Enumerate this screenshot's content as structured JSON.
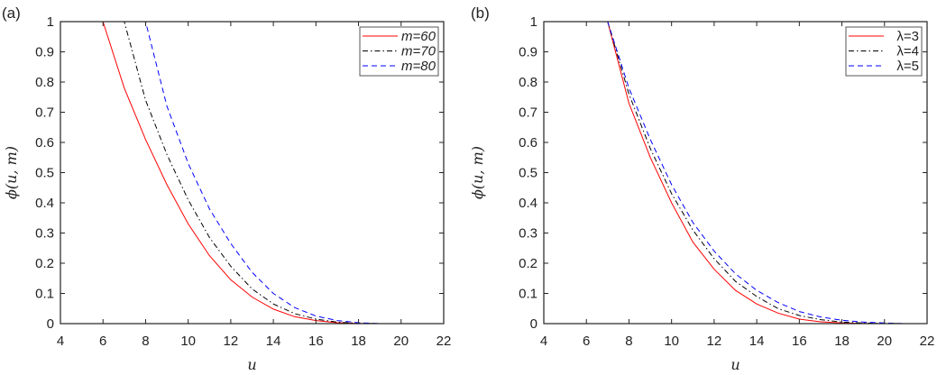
{
  "chart_data": [
    {
      "type": "line",
      "panel_label": "(a)",
      "xlabel": "u",
      "ylabel": "ϕ(u, m)",
      "xlim": [
        4,
        22
      ],
      "ylim": [
        0,
        1
      ],
      "xticks": [
        4,
        6,
        8,
        10,
        12,
        14,
        16,
        18,
        20,
        22
      ],
      "yticks": [
        0,
        0.1,
        0.2,
        0.3,
        0.4,
        0.5,
        0.6,
        0.7,
        0.8,
        0.9,
        1
      ],
      "grid": false,
      "legend": "top-right",
      "x": [
        4,
        5,
        6,
        7,
        8,
        9,
        10,
        11,
        12,
        13,
        14,
        15,
        16,
        17,
        18,
        19,
        20,
        21
      ],
      "series": [
        {
          "name": "m=60",
          "color": "#ff0000",
          "style": "solid",
          "values": [
            1,
            1,
            1,
            0.78,
            0.61,
            0.46,
            0.33,
            0.225,
            0.145,
            0.088,
            0.048,
            0.023,
            0.01,
            0.003,
            0.001,
            0,
            0,
            0
          ]
        },
        {
          "name": "m=70",
          "color": "#000000",
          "style": "dashdot",
          "values": [
            1,
            1,
            1,
            1,
            0.74,
            0.56,
            0.41,
            0.285,
            0.19,
            0.115,
            0.065,
            0.033,
            0.015,
            0.005,
            0.001,
            0,
            0,
            0
          ]
        },
        {
          "name": "m=80",
          "color": "#0000ff",
          "style": "dashed",
          "values": [
            1,
            1,
            1,
            1,
            1,
            0.72,
            0.53,
            0.38,
            0.265,
            0.17,
            0.1,
            0.053,
            0.025,
            0.01,
            0.003,
            0,
            0,
            0
          ]
        }
      ]
    },
    {
      "type": "line",
      "panel_label": "(b)",
      "xlabel": "u",
      "ylabel": "ϕ(u, m)",
      "xlim": [
        4,
        22
      ],
      "ylim": [
        0,
        1
      ],
      "xticks": [
        4,
        6,
        8,
        10,
        12,
        14,
        16,
        18,
        20,
        22
      ],
      "yticks": [
        0,
        0.1,
        0.2,
        0.3,
        0.4,
        0.5,
        0.6,
        0.7,
        0.8,
        0.9,
        1
      ],
      "grid": false,
      "legend": "top-right",
      "x": [
        4,
        5,
        6,
        7,
        8,
        9,
        10,
        11,
        12,
        13,
        14,
        15,
        16,
        17,
        18,
        19,
        20,
        21
      ],
      "series": [
        {
          "name": "λ=3",
          "color": "#ff0000",
          "style": "solid",
          "values": [
            1,
            1,
            1,
            1,
            0.73,
            0.55,
            0.4,
            0.27,
            0.18,
            0.11,
            0.065,
            0.035,
            0.015,
            0.006,
            0.002,
            0.0005,
            0,
            0
          ]
        },
        {
          "name": "λ=4",
          "color": "#000000",
          "style": "dashdot",
          "values": [
            1,
            1,
            1,
            1,
            0.76,
            0.58,
            0.43,
            0.31,
            0.215,
            0.14,
            0.09,
            0.05,
            0.027,
            0.013,
            0.005,
            0.002,
            0.001,
            0
          ]
        },
        {
          "name": "λ=5",
          "color": "#0000ff",
          "style": "dashed",
          "values": [
            1,
            1,
            1,
            1,
            0.78,
            0.61,
            0.46,
            0.335,
            0.24,
            0.165,
            0.11,
            0.07,
            0.04,
            0.022,
            0.011,
            0.005,
            0.002,
            0
          ]
        }
      ]
    }
  ]
}
